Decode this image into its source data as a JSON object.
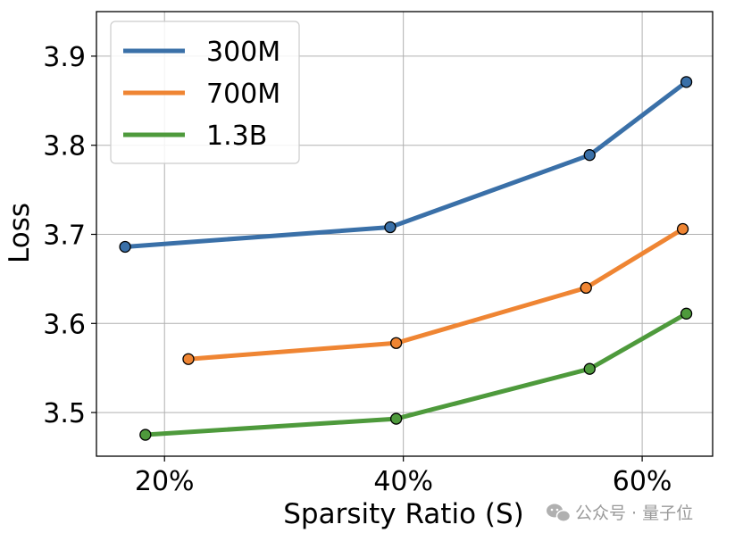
{
  "chart_data": {
    "type": "line",
    "title": "",
    "xlabel": "Sparsity Ratio (S)",
    "ylabel": "Loss",
    "xlim": [
      14.3,
      65.9
    ],
    "ylim": [
      3.451,
      3.95
    ],
    "x_ticks": [
      20,
      40,
      60
    ],
    "x_tick_labels": [
      "20%",
      "40%",
      "60%"
    ],
    "y_ticks": [
      3.5,
      3.6,
      3.7,
      3.8,
      3.9
    ],
    "y_tick_labels": [
      "3.5",
      "3.6",
      "3.7",
      "3.8",
      "3.9"
    ],
    "grid": true,
    "legend_position": "top-left",
    "series": [
      {
        "name": "300M",
        "color": "#3a70a8",
        "x": [
          16.7,
          38.9,
          55.6,
          63.7
        ],
        "y": [
          3.686,
          3.708,
          3.789,
          3.871
        ]
      },
      {
        "name": "700M",
        "color": "#ef8533",
        "x": [
          22.0,
          39.4,
          55.3,
          63.4
        ],
        "y": [
          3.56,
          3.578,
          3.64,
          3.706
        ]
      },
      {
        "name": "1.3B",
        "color": "#4e9a3c",
        "x": [
          18.4,
          39.4,
          55.6,
          63.7
        ],
        "y": [
          3.475,
          3.493,
          3.549,
          3.611
        ]
      }
    ]
  },
  "watermark": {
    "text": "公众号 · 量子位",
    "icon": "wechat-icon"
  }
}
